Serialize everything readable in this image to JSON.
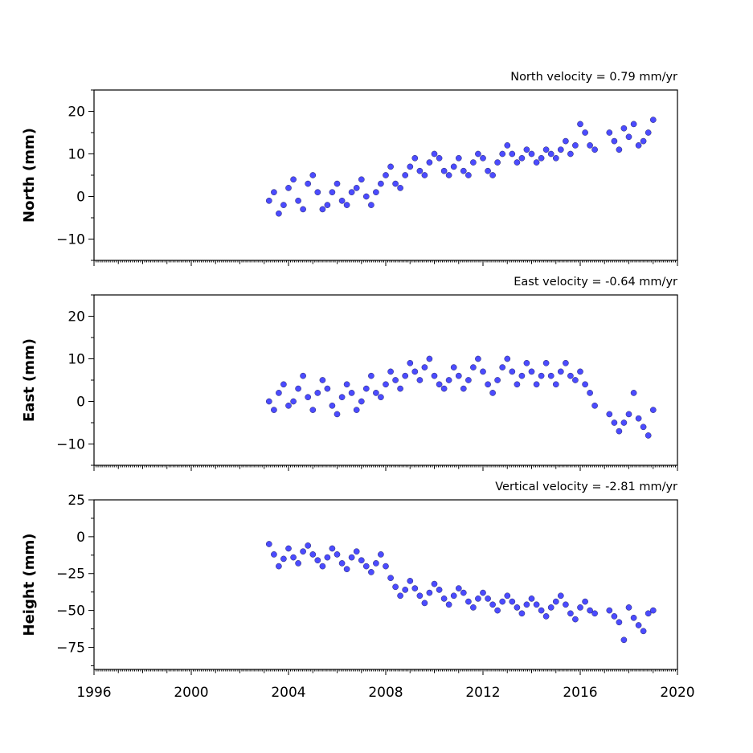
{
  "chart_data": [
    {
      "type": "scatter",
      "title": "North velocity = 0.79 mm/yr",
      "ylabel": "North (mm)",
      "xlim": [
        1996,
        2020
      ],
      "ylim": [
        -15,
        25
      ],
      "yticks": [
        -10,
        0,
        10,
        20
      ],
      "xticks": [
        1996,
        2000,
        2004,
        2008,
        2012,
        2016,
        2020
      ],
      "show_xtick_labels": false,
      "series": [
        {
          "x": [
            2003.2,
            2003.4,
            2003.6,
            2003.8,
            2004.0,
            2004.2,
            2004.4,
            2004.6,
            2004.8,
            2005.0,
            2005.2,
            2005.4,
            2005.6,
            2005.8,
            2006.0,
            2006.2,
            2006.4,
            2006.6,
            2006.8,
            2007.0,
            2007.2,
            2007.4,
            2007.6,
            2007.8,
            2008.0,
            2008.2,
            2008.4,
            2008.6,
            2008.8,
            2009.0,
            2009.2,
            2009.4,
            2009.6,
            2009.8,
            2010.0,
            2010.2,
            2010.4,
            2010.6,
            2010.8,
            2011.0,
            2011.2,
            2011.4,
            2011.6,
            2011.8,
            2012.0,
            2012.2,
            2012.4,
            2012.6,
            2012.8,
            2013.0,
            2013.2,
            2013.4,
            2013.6,
            2013.8,
            2014.0,
            2014.2,
            2014.4,
            2014.6,
            2014.8,
            2015.0,
            2015.2,
            2015.4,
            2015.6,
            2015.8,
            2016.0,
            2016.2,
            2016.4,
            2016.6,
            2017.2,
            2017.4,
            2017.6,
            2017.8,
            2018.0,
            2018.2,
            2018.4,
            2018.6,
            2018.8,
            2019.0
          ],
          "y": [
            -1,
            1,
            -4,
            -2,
            2,
            4,
            -1,
            -3,
            3,
            5,
            1,
            -3,
            -2,
            1,
            3,
            -1,
            -2,
            1,
            2,
            4,
            0,
            -2,
            1,
            3,
            5,
            7,
            3,
            2,
            5,
            7,
            9,
            6,
            5,
            8,
            10,
            9,
            6,
            5,
            7,
            9,
            6,
            5,
            8,
            10,
            9,
            6,
            5,
            8,
            10,
            12,
            10,
            8,
            9,
            11,
            10,
            8,
            9,
            11,
            10,
            9,
            11,
            13,
            10,
            12,
            17,
            15,
            12,
            11,
            15,
            13,
            11,
            16,
            14,
            17,
            12,
            13,
            15,
            18
          ]
        }
      ]
    },
    {
      "type": "scatter",
      "title": "East velocity = -0.64 mm/yr",
      "ylabel": "East (mm)",
      "xlim": [
        1996,
        2020
      ],
      "ylim": [
        -15,
        25
      ],
      "yticks": [
        -10,
        0,
        10,
        20
      ],
      "xticks": [
        1996,
        2000,
        2004,
        2008,
        2012,
        2016,
        2020
      ],
      "show_xtick_labels": false,
      "series": [
        {
          "x": [
            2003.2,
            2003.4,
            2003.6,
            2003.8,
            2004.0,
            2004.2,
            2004.4,
            2004.6,
            2004.8,
            2005.0,
            2005.2,
            2005.4,
            2005.6,
            2005.8,
            2006.0,
            2006.2,
            2006.4,
            2006.6,
            2006.8,
            2007.0,
            2007.2,
            2007.4,
            2007.6,
            2007.8,
            2008.0,
            2008.2,
            2008.4,
            2008.6,
            2008.8,
            2009.0,
            2009.2,
            2009.4,
            2009.6,
            2009.8,
            2010.0,
            2010.2,
            2010.4,
            2010.6,
            2010.8,
            2011.0,
            2011.2,
            2011.4,
            2011.6,
            2011.8,
            2012.0,
            2012.2,
            2012.4,
            2012.6,
            2012.8,
            2013.0,
            2013.2,
            2013.4,
            2013.6,
            2013.8,
            2014.0,
            2014.2,
            2014.4,
            2014.6,
            2014.8,
            2015.0,
            2015.2,
            2015.4,
            2015.6,
            2015.8,
            2016.0,
            2016.2,
            2016.4,
            2016.6,
            2017.2,
            2017.4,
            2017.6,
            2017.8,
            2018.0,
            2018.2,
            2018.4,
            2018.6,
            2018.8,
            2019.0
          ],
          "y": [
            0,
            -2,
            2,
            4,
            -1,
            0,
            3,
            6,
            1,
            -2,
            2,
            5,
            3,
            -1,
            -3,
            1,
            4,
            2,
            -2,
            0,
            3,
            6,
            2,
            1,
            4,
            7,
            5,
            3,
            6,
            9,
            7,
            5,
            8,
            10,
            6,
            4,
            3,
            5,
            8,
            6,
            3,
            5,
            8,
            10,
            7,
            4,
            2,
            5,
            8,
            10,
            7,
            4,
            6,
            9,
            7,
            4,
            6,
            9,
            6,
            4,
            7,
            9,
            6,
            5,
            7,
            4,
            2,
            -1,
            -3,
            -5,
            -7,
            -5,
            -3,
            2,
            -4,
            -6,
            -8,
            -2
          ]
        }
      ]
    },
    {
      "type": "scatter",
      "title": "Vertical velocity = -2.81 mm/yr",
      "ylabel": "Height (mm)",
      "xlim": [
        1996,
        2020
      ],
      "ylim": [
        -90,
        25
      ],
      "yticks": [
        -75,
        -50,
        -25,
        0,
        25
      ],
      "xticks": [
        1996,
        2000,
        2004,
        2008,
        2012,
        2016,
        2020
      ],
      "show_xtick_labels": true,
      "series": [
        {
          "x": [
            2003.2,
            2003.4,
            2003.6,
            2003.8,
            2004.0,
            2004.2,
            2004.4,
            2004.6,
            2004.8,
            2005.0,
            2005.2,
            2005.4,
            2005.6,
            2005.8,
            2006.0,
            2006.2,
            2006.4,
            2006.6,
            2006.8,
            2007.0,
            2007.2,
            2007.4,
            2007.6,
            2007.8,
            2008.0,
            2008.2,
            2008.4,
            2008.6,
            2008.8,
            2009.0,
            2009.2,
            2009.4,
            2009.6,
            2009.8,
            2010.0,
            2010.2,
            2010.4,
            2010.6,
            2010.8,
            2011.0,
            2011.2,
            2011.4,
            2011.6,
            2011.8,
            2012.0,
            2012.2,
            2012.4,
            2012.6,
            2012.8,
            2013.0,
            2013.2,
            2013.4,
            2013.6,
            2013.8,
            2014.0,
            2014.2,
            2014.4,
            2014.6,
            2014.8,
            2015.0,
            2015.2,
            2015.4,
            2015.6,
            2015.8,
            2016.0,
            2016.2,
            2016.4,
            2016.6,
            2017.2,
            2017.4,
            2017.6,
            2017.8,
            2018.0,
            2018.2,
            2018.4,
            2018.6,
            2018.8,
            2019.0
          ],
          "y": [
            -5,
            -12,
            -20,
            -15,
            -8,
            -14,
            -18,
            -10,
            -6,
            -12,
            -16,
            -20,
            -14,
            -8,
            -12,
            -18,
            -22,
            -14,
            -10,
            -16,
            -20,
            -24,
            -18,
            -12,
            -20,
            -28,
            -34,
            -40,
            -36,
            -30,
            -35,
            -40,
            -45,
            -38,
            -32,
            -36,
            -42,
            -46,
            -40,
            -35,
            -38,
            -44,
            -48,
            -42,
            -38,
            -42,
            -46,
            -50,
            -44,
            -40,
            -44,
            -48,
            -52,
            -46,
            -42,
            -46,
            -50,
            -54,
            -48,
            -44,
            -40,
            -46,
            -52,
            -56,
            -48,
            -44,
            -50,
            -52,
            -50,
            -54,
            -58,
            -70,
            -48,
            -55,
            -60,
            -64,
            -52,
            -50
          ]
        }
      ]
    }
  ]
}
